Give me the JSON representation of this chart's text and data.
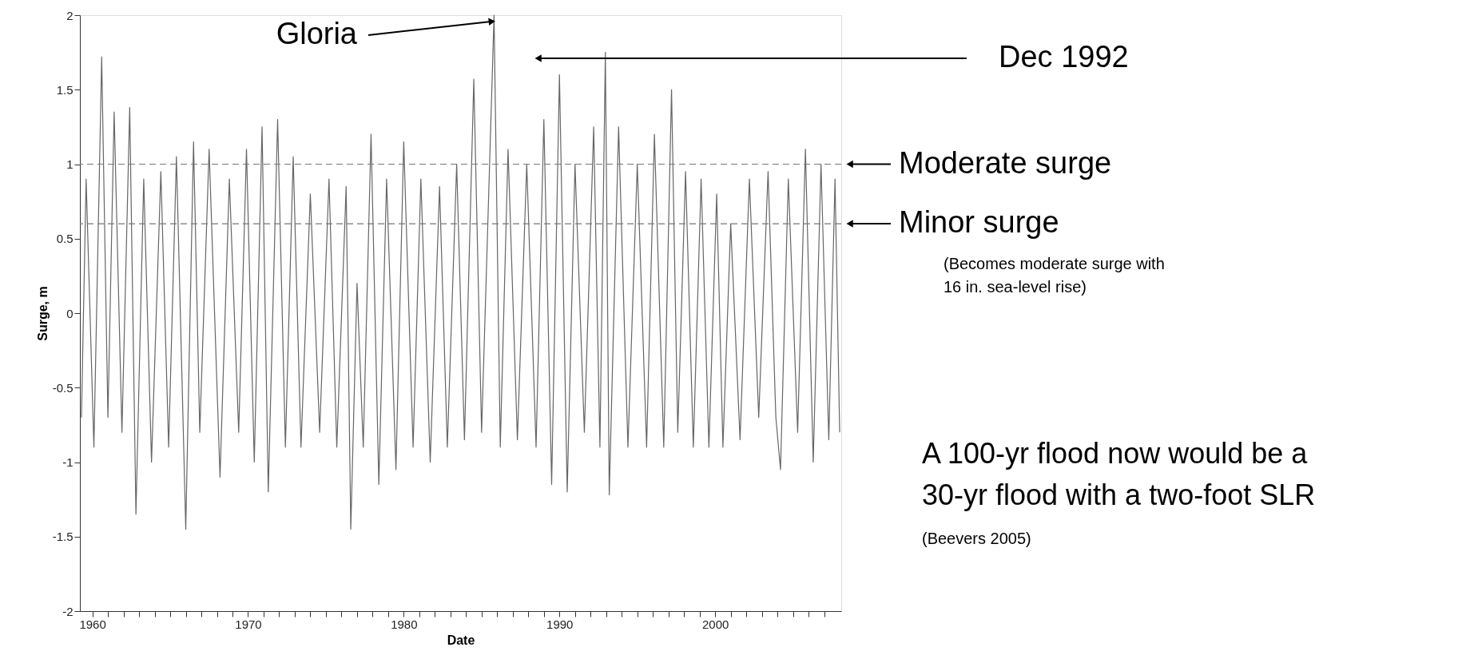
{
  "chart_data": {
    "type": "line",
    "xlabel": "Date",
    "ylabel": "Surge, m",
    "x": [
      1959.3,
      1959.6,
      1960.1,
      1960.6,
      1961.0,
      1961.4,
      1961.9,
      1962.4,
      1962.8,
      1963.3,
      1963.8,
      1964.4,
      1964.9,
      1965.4,
      1966.0,
      1966.5,
      1966.9,
      1967.5,
      1968.2,
      1968.8,
      1969.4,
      1969.9,
      1970.4,
      1970.9,
      1971.3,
      1971.9,
      1972.4,
      1972.9,
      1973.4,
      1974.0,
      1974.6,
      1975.2,
      1975.7,
      1976.3,
      1976.6,
      1977.0,
      1977.4,
      1977.9,
      1978.4,
      1978.9,
      1979.5,
      1980.0,
      1980.6,
      1981.1,
      1981.7,
      1982.3,
      1982.8,
      1983.4,
      1983.9,
      1984.5,
      1985.0,
      1985.8,
      1986.2,
      1986.7,
      1987.3,
      1987.9,
      1988.5,
      1989.0,
      1989.5,
      1990.0,
      1990.5,
      1991.0,
      1991.6,
      1992.2,
      1992.6,
      1992.95,
      1993.2,
      1993.8,
      1994.4,
      1995.0,
      1995.6,
      1996.1,
      1996.7,
      1997.2,
      1997.6,
      1998.1,
      1998.6,
      1999.1,
      1999.6,
      2000.1,
      2000.5,
      2001.0,
      2001.6,
      2002.2,
      2002.8,
      2003.4,
      2003.9,
      2004.2,
      2004.7,
      2005.3,
      2005.8,
      2006.3,
      2006.8,
      2007.3,
      2007.7,
      2008.0
    ],
    "series": [
      {
        "color": "#666666",
        "values": [
          -0.7,
          0.9,
          -0.9,
          1.72,
          -0.7,
          1.35,
          -0.8,
          1.38,
          -1.35,
          0.9,
          -1.0,
          0.95,
          -0.9,
          1.05,
          -1.45,
          1.15,
          -0.8,
          1.1,
          -1.1,
          0.9,
          -0.8,
          1.1,
          -1.0,
          1.25,
          -1.2,
          1.3,
          -0.9,
          1.05,
          -0.9,
          0.8,
          -0.8,
          0.9,
          -0.9,
          0.85,
          -1.45,
          0.2,
          -0.9,
          1.2,
          -1.15,
          0.9,
          -1.05,
          1.15,
          -0.9,
          0.9,
          -1.0,
          0.85,
          -0.9,
          1.0,
          -0.85,
          1.57,
          -0.8,
          2.0,
          -0.9,
          1.1,
          -0.85,
          1.0,
          -0.9,
          1.3,
          -1.15,
          1.6,
          -1.2,
          1.0,
          -0.8,
          1.25,
          -0.9,
          1.75,
          -1.22,
          1.25,
          -0.9,
          1.0,
          -0.9,
          1.2,
          -0.9,
          1.5,
          -0.8,
          0.95,
          -0.9,
          0.9,
          -0.9,
          0.8,
          -0.9,
          0.6,
          -0.85,
          0.9,
          -0.7,
          0.95,
          -0.7,
          -1.05,
          0.9,
          -0.8,
          1.1,
          -1.0,
          1.0,
          -0.85,
          0.9,
          -0.8
        ]
      }
    ],
    "xlim": [
      1959.2,
      2008.1
    ],
    "xticks": [
      1960,
      {
        "value": 1961,
        "label": null
      },
      {
        "value": 1962,
        "label": null
      },
      {
        "value": 1963,
        "label": null
      },
      {
        "value": 1964,
        "label": null
      },
      {
        "value": 1965,
        "label": null
      },
      {
        "value": 1966,
        "label": null
      },
      {
        "value": 1967,
        "label": null
      },
      {
        "value": 1968,
        "label": null
      },
      {
        "value": 1969,
        "label": null
      },
      1970,
      {
        "value": 1971,
        "label": null
      },
      {
        "value": 1972,
        "label": null
      },
      {
        "value": 1973,
        "label": null
      },
      {
        "value": 1974,
        "label": null
      },
      {
        "value": 1975,
        "label": null
      },
      {
        "value": 1976,
        "label": null
      },
      {
        "value": 1977,
        "label": null
      },
      {
        "value": 1978,
        "label": null
      },
      {
        "value": 1979,
        "label": null
      },
      1980,
      {
        "value": 1981,
        "label": null
      },
      {
        "value": 1982,
        "label": null
      },
      {
        "value": 1983,
        "label": null
      },
      {
        "value": 1984,
        "label": null
      },
      {
        "value": 1985,
        "label": null
      },
      {
        "value": 1986,
        "label": null
      },
      {
        "value": 1987,
        "label": null
      },
      {
        "value": 1988,
        "label": null
      },
      {
        "value": 1989,
        "label": null
      },
      1990,
      {
        "value": 1991,
        "label": null
      },
      {
        "value": 1992,
        "label": null
      },
      {
        "value": 1993,
        "label": null
      },
      {
        "value": 1994,
        "label": null
      },
      {
        "value": 1995,
        "label": null
      },
      {
        "value": 1996,
        "label": null
      },
      {
        "value": 1997,
        "label": null
      },
      {
        "value": 1998,
        "label": null
      },
      {
        "value": 1999,
        "label": null
      },
      2000,
      {
        "value": 2001,
        "label": null
      },
      {
        "value": 2002,
        "label": null
      },
      {
        "value": 2003,
        "label": null
      },
      {
        "value": 2004,
        "label": null
      },
      {
        "value": 2005,
        "label": null
      },
      {
        "value": 2006,
        "label": null
      },
      {
        "value": 2007,
        "label": null
      }
    ],
    "ylim": [
      -2,
      2
    ],
    "yticks": [
      -2,
      -1.5,
      -1,
      -0.5,
      0,
      0.5,
      1,
      1.5,
      2
    ],
    "ref_lines": [
      {
        "axis": "y",
        "value": 1,
        "label": "Moderate surge",
        "color": "#777777",
        "line_style": "dashed"
      },
      {
        "axis": "y",
        "value": 0.6,
        "label": "Minor surge",
        "color": "#777777",
        "line_style": "dashed"
      }
    ],
    "annotations": [
      {
        "text": "Gloria",
        "x": 1985.8,
        "y": 2.0
      },
      "Dec 1992",
      "(Becomes moderate surge with 16 in. sea-level rise)",
      "A 100-yr flood now would be a 30-yr flood with a two-foot SLR",
      "(Beevers 2005)"
    ],
    "grid": false,
    "marker": "none",
    "line_style": "solid"
  }
}
